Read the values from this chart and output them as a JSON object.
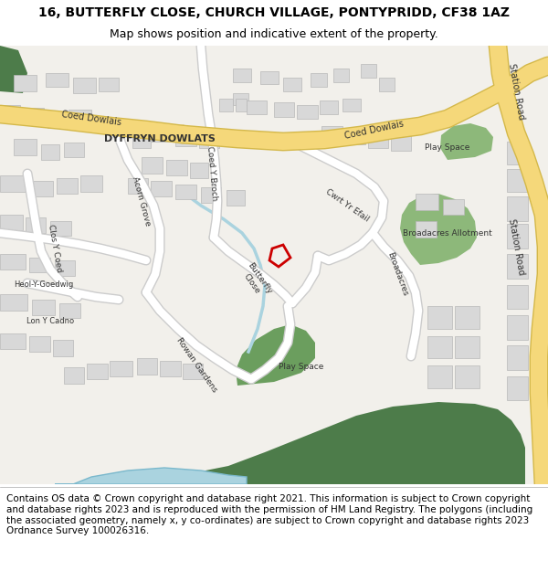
{
  "title_line1": "16, BUTTERFLY CLOSE, CHURCH VILLAGE, PONTYPRIDD, CF38 1AZ",
  "title_line2": "Map shows position and indicative extent of the property.",
  "footer_text": "Contains OS data © Crown copyright and database right 2021. This information is subject to Crown copyright and database rights 2023 and is reproduced with the permission of HM Land Registry. The polygons (including the associated geometry, namely x, y co-ordinates) are subject to Crown copyright and database rights 2023 Ordnance Survey 100026316.",
  "title_fontsize": 10,
  "subtitle_fontsize": 9,
  "footer_fontsize": 7.5,
  "map_bg": "#f2f0eb",
  "road_major_color": "#f5d87a",
  "road_major_edge": "#d4b84a",
  "road_minor_color": "#ffffff",
  "road_minor_edge": "#cccccc",
  "building_color": "#d8d8d8",
  "building_edge": "#b8b8b8",
  "green_dark": "#4d7c4a",
  "green_mid": "#6b9e5e",
  "green_light": "#8db87a",
  "water_color": "#aad3df",
  "water_edge": "#7ab8cc",
  "plot_outline_color": "#cc0000",
  "plot_lw": 2.0,
  "footer_bg": "#ffffff"
}
